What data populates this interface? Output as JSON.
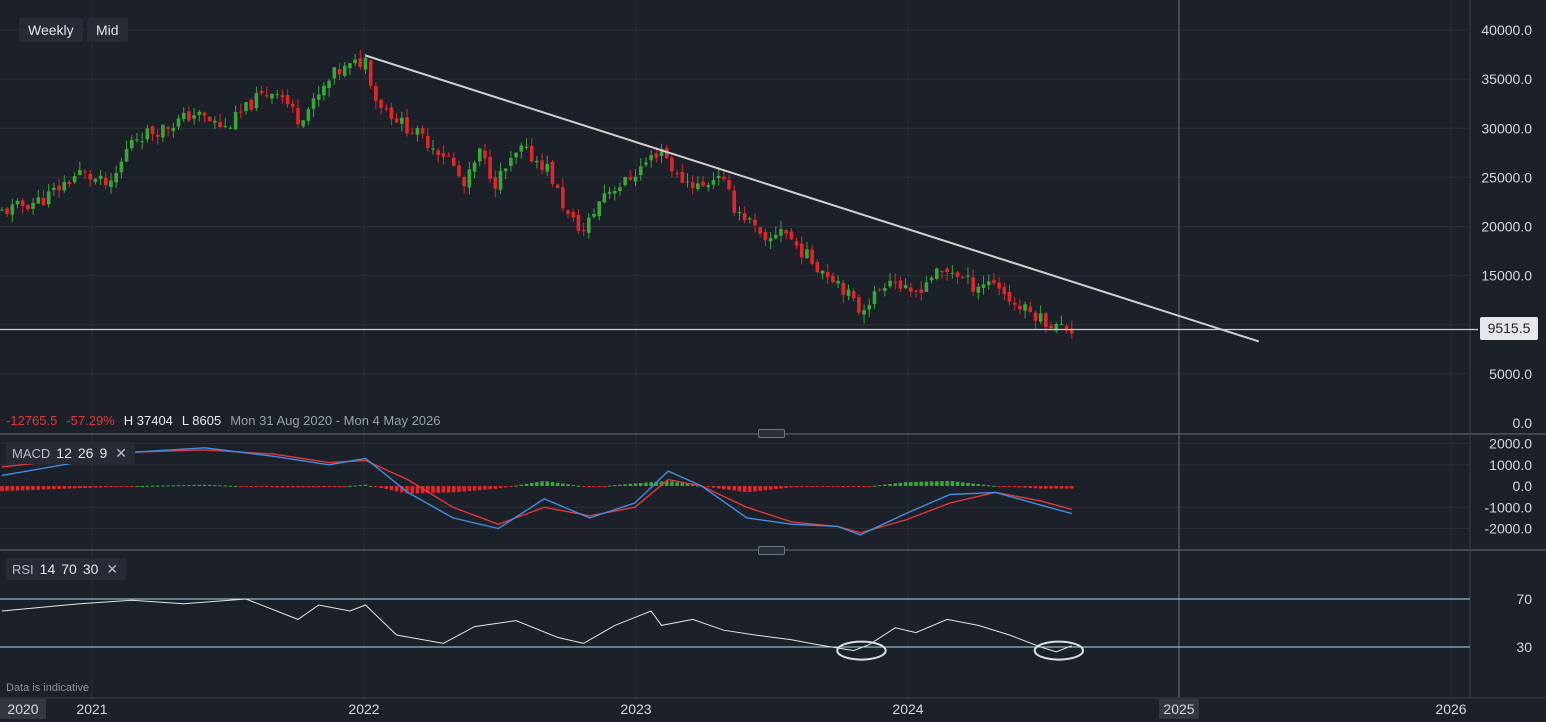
{
  "toolbar": {
    "timeframe": "Weekly",
    "price_type": "Mid"
  },
  "stats": {
    "change": "-12765.5",
    "change_pct": "-57.29%",
    "high": "H 37404",
    "low": "L 8605",
    "range": "Mon 31 Aug 2020 - Mon 4 May 2026"
  },
  "macd": {
    "name": "MACD",
    "p1": "12",
    "p2": "26",
    "p3": "9",
    "close": "✕"
  },
  "rsi": {
    "name": "RSI",
    "p1": "14",
    "p2": "70",
    "p3": "30",
    "close": "✕"
  },
  "disclaimer": "Data is indicative",
  "current_price": "9515.5",
  "colors": {
    "background": "#1c2029",
    "up": "#3aa63a",
    "down": "#e0262b",
    "trendline": "#d0d0d0",
    "macd_line": "#3f8ee0",
    "signal_line": "#e0383e",
    "rsi_line": "#e6e6e6",
    "rsi_levels": "#b9d8f0",
    "highlight": "#d9dde2"
  },
  "chart_data": [
    {
      "type": "candlestick",
      "timeframe": "Weekly",
      "ylim": [
        0,
        40000
      ],
      "yticks": [
        "40000.0",
        "35000.0",
        "30000.0",
        "25000.0",
        "20000.0",
        "15000.0",
        "5000.0",
        "0.0"
      ],
      "xlim": [
        "2020-08-31",
        "2026-05-04"
      ],
      "xticks": [
        "2020",
        "2021",
        "2022",
        "2023",
        "2024",
        "2025",
        "2026"
      ],
      "high": 37404,
      "low": 8605,
      "current_price": 9515.5,
      "horizontal_line": 9515.5,
      "trendline": [
        [
          "2022-01-03",
          37404
        ],
        [
          "2025-04-21",
          8300
        ]
      ],
      "close_path": [
        [
          "2020-08-31",
          21500
        ],
        [
          "2020-10-26",
          22800
        ],
        [
          "2020-12-14",
          25500
        ],
        [
          "2021-01-25",
          24000
        ],
        [
          "2021-02-22",
          29000
        ],
        [
          "2021-04-05",
          30000
        ],
        [
          "2021-05-17",
          31500
        ],
        [
          "2021-06-28",
          30000
        ],
        [
          "2021-08-09",
          33000
        ],
        [
          "2021-09-06",
          34000
        ],
        [
          "2021-10-04",
          31000
        ],
        [
          "2021-10-25",
          32500
        ],
        [
          "2021-11-22",
          35500
        ],
        [
          "2022-01-03",
          37000
        ],
        [
          "2022-01-17",
          33000
        ],
        [
          "2022-02-21",
          30500
        ],
        [
          "2022-03-21",
          29000
        ],
        [
          "2022-04-25",
          27000
        ],
        [
          "2022-05-16",
          24000
        ],
        [
          "2022-06-06",
          27500
        ],
        [
          "2022-06-27",
          24500
        ],
        [
          "2022-08-01",
          27800
        ],
        [
          "2022-09-05",
          26000
        ],
        [
          "2022-10-03",
          21000
        ],
        [
          "2022-10-24",
          19500
        ],
        [
          "2022-11-21",
          23500
        ],
        [
          "2022-12-19",
          24500
        ],
        [
          "2023-01-16",
          26500
        ],
        [
          "2023-02-06",
          28000
        ],
        [
          "2023-02-27",
          25000
        ],
        [
          "2023-04-03",
          24000
        ],
        [
          "2023-04-24",
          25500
        ],
        [
          "2023-05-15",
          22000
        ],
        [
          "2023-06-05",
          20500
        ],
        [
          "2023-06-26",
          18000
        ],
        [
          "2023-07-17",
          20000
        ],
        [
          "2023-08-07",
          18000
        ],
        [
          "2023-09-04",
          16000
        ],
        [
          "2023-10-02",
          14500
        ],
        [
          "2023-10-30",
          11500
        ],
        [
          "2023-11-20",
          13000
        ],
        [
          "2023-12-11",
          15000
        ],
        [
          "2024-01-08",
          12800
        ],
        [
          "2024-02-05",
          15000
        ],
        [
          "2024-03-04",
          15500
        ],
        [
          "2024-04-01",
          14000
        ],
        [
          "2024-04-29",
          14500
        ],
        [
          "2024-05-27",
          12000
        ],
        [
          "2024-06-24",
          11000
        ],
        [
          "2024-07-22",
          9800
        ],
        [
          "2024-08-12",
          9515.5
        ]
      ]
    },
    {
      "type": "line",
      "name": "MACD",
      "params": [
        12,
        26,
        9
      ],
      "ylim": [
        -2500,
        2300
      ],
      "yticks": [
        "2000.0",
        "1000.0",
        "0.0",
        "-1000.0",
        "-2000.0"
      ],
      "series": [
        {
          "name": "MACD",
          "x": [
            "2020-08-31",
            "2021-03-01",
            "2021-06-01",
            "2021-09-01",
            "2021-11-15",
            "2022-01-03",
            "2022-03-01",
            "2022-05-01",
            "2022-07-01",
            "2022-09-01",
            "2022-11-01",
            "2023-01-01",
            "2023-02-15",
            "2023-04-01",
            "2023-06-01",
            "2023-08-01",
            "2023-10-01",
            "2023-11-01",
            "2024-01-01",
            "2024-03-01",
            "2024-05-01",
            "2024-07-01",
            "2024-08-12"
          ],
          "values": [
            500,
            1600,
            1800,
            1400,
            1000,
            1300,
            -300,
            -1500,
            -2000,
            -600,
            -1500,
            -800,
            700,
            0,
            -1500,
            -1800,
            -1900,
            -2300,
            -1300,
            -400,
            -300,
            -900,
            -1300
          ]
        },
        {
          "name": "Signal",
          "x": [
            "2020-08-31",
            "2021-03-01",
            "2021-06-01",
            "2021-09-01",
            "2021-11-15",
            "2022-01-03",
            "2022-03-01",
            "2022-05-01",
            "2022-07-01",
            "2022-09-01",
            "2022-11-01",
            "2023-01-01",
            "2023-02-15",
            "2023-04-01",
            "2023-06-01",
            "2023-08-01",
            "2023-10-01",
            "2023-11-01",
            "2024-01-01",
            "2024-03-01",
            "2024-05-01",
            "2024-07-01",
            "2024-08-12"
          ],
          "values": [
            900,
            1600,
            1700,
            1500,
            1100,
            1200,
            300,
            -1000,
            -1800,
            -1000,
            -1400,
            -1000,
            300,
            0,
            -1000,
            -1700,
            -1900,
            -2200,
            -1600,
            -800,
            -300,
            -700,
            -1100
          ]
        }
      ]
    },
    {
      "type": "line",
      "name": "RSI",
      "params": [
        14,
        70,
        30
      ],
      "ylim": [
        0,
        100
      ],
      "levels": [
        70,
        30
      ],
      "yticks": [
        "70",
        "30"
      ],
      "highlighted_oversold": [
        [
          "2023-10-09",
          "2023-11-27"
        ],
        [
          "2024-07-01",
          "2024-08-19"
        ]
      ],
      "series": [
        {
          "name": "RSI",
          "x": [
            "2020-08-31",
            "2020-12-14",
            "2021-02-22",
            "2021-05-03",
            "2021-07-26",
            "2021-10-04",
            "2021-11-01",
            "2021-12-13",
            "2022-01-03",
            "2022-02-14",
            "2022-04-18",
            "2022-05-30",
            "2022-07-25",
            "2022-09-19",
            "2022-10-24",
            "2022-12-05",
            "2023-01-23",
            "2023-02-06",
            "2023-03-20",
            "2023-05-01",
            "2023-06-12",
            "2023-07-31",
            "2023-09-04",
            "2023-10-23",
            "2023-11-13",
            "2023-12-18",
            "2024-01-15",
            "2024-02-26",
            "2024-04-08",
            "2024-05-20",
            "2024-07-01",
            "2024-07-22",
            "2024-08-12"
          ],
          "values": [
            60,
            66,
            69,
            66,
            70,
            53,
            65,
            60,
            65,
            40,
            33,
            47,
            52,
            38,
            33,
            48,
            60,
            48,
            53,
            44,
            40,
            36,
            32,
            27,
            32,
            46,
            42,
            53,
            48,
            40,
            30,
            26,
            31
          ]
        }
      ]
    }
  ]
}
